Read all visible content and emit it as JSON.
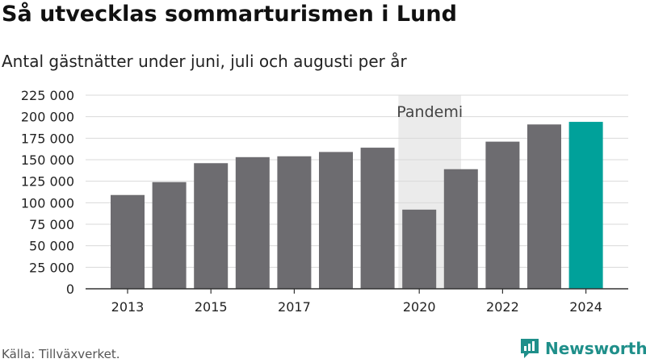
{
  "title": "Så utvecklas sommarturismen i Lund",
  "subtitle": "Antal gästnätter under juni, juli och augusti per år",
  "source": "Källa: Tillväxverket.",
  "brand": "Newsworthy",
  "colors": {
    "bar": "#6d6c70",
    "highlight": "#00a19a",
    "band": "#ebebeb",
    "grid": "#d9d9d9",
    "brand": "#1f8f8a"
  },
  "chart_data": {
    "type": "bar",
    "categories": [
      "2013",
      "2014",
      "2015",
      "2016",
      "2017",
      "2018",
      "2019",
      "2020",
      "2021",
      "2022",
      "2023",
      "2024"
    ],
    "values": [
      109000,
      124000,
      146000,
      153000,
      154000,
      159000,
      164000,
      92000,
      139000,
      171000,
      191000,
      194000
    ],
    "highlight_index": 11,
    "x_tick_labels": [
      "2013",
      "2015",
      "2017",
      "2020",
      "2022",
      "2024"
    ],
    "y_ticks": [
      0,
      25000,
      50000,
      75000,
      100000,
      125000,
      150000,
      175000,
      200000,
      225000
    ],
    "y_tick_labels": [
      "0",
      "25 000",
      "50 000",
      "75 000",
      "100 000",
      "125 000",
      "150 000",
      "175 000",
      "200 000",
      "225 000"
    ],
    "ylim": [
      0,
      225000
    ],
    "grid": true,
    "annotation": {
      "label": "Pandemi",
      "from": "2020",
      "to": "2021"
    }
  }
}
